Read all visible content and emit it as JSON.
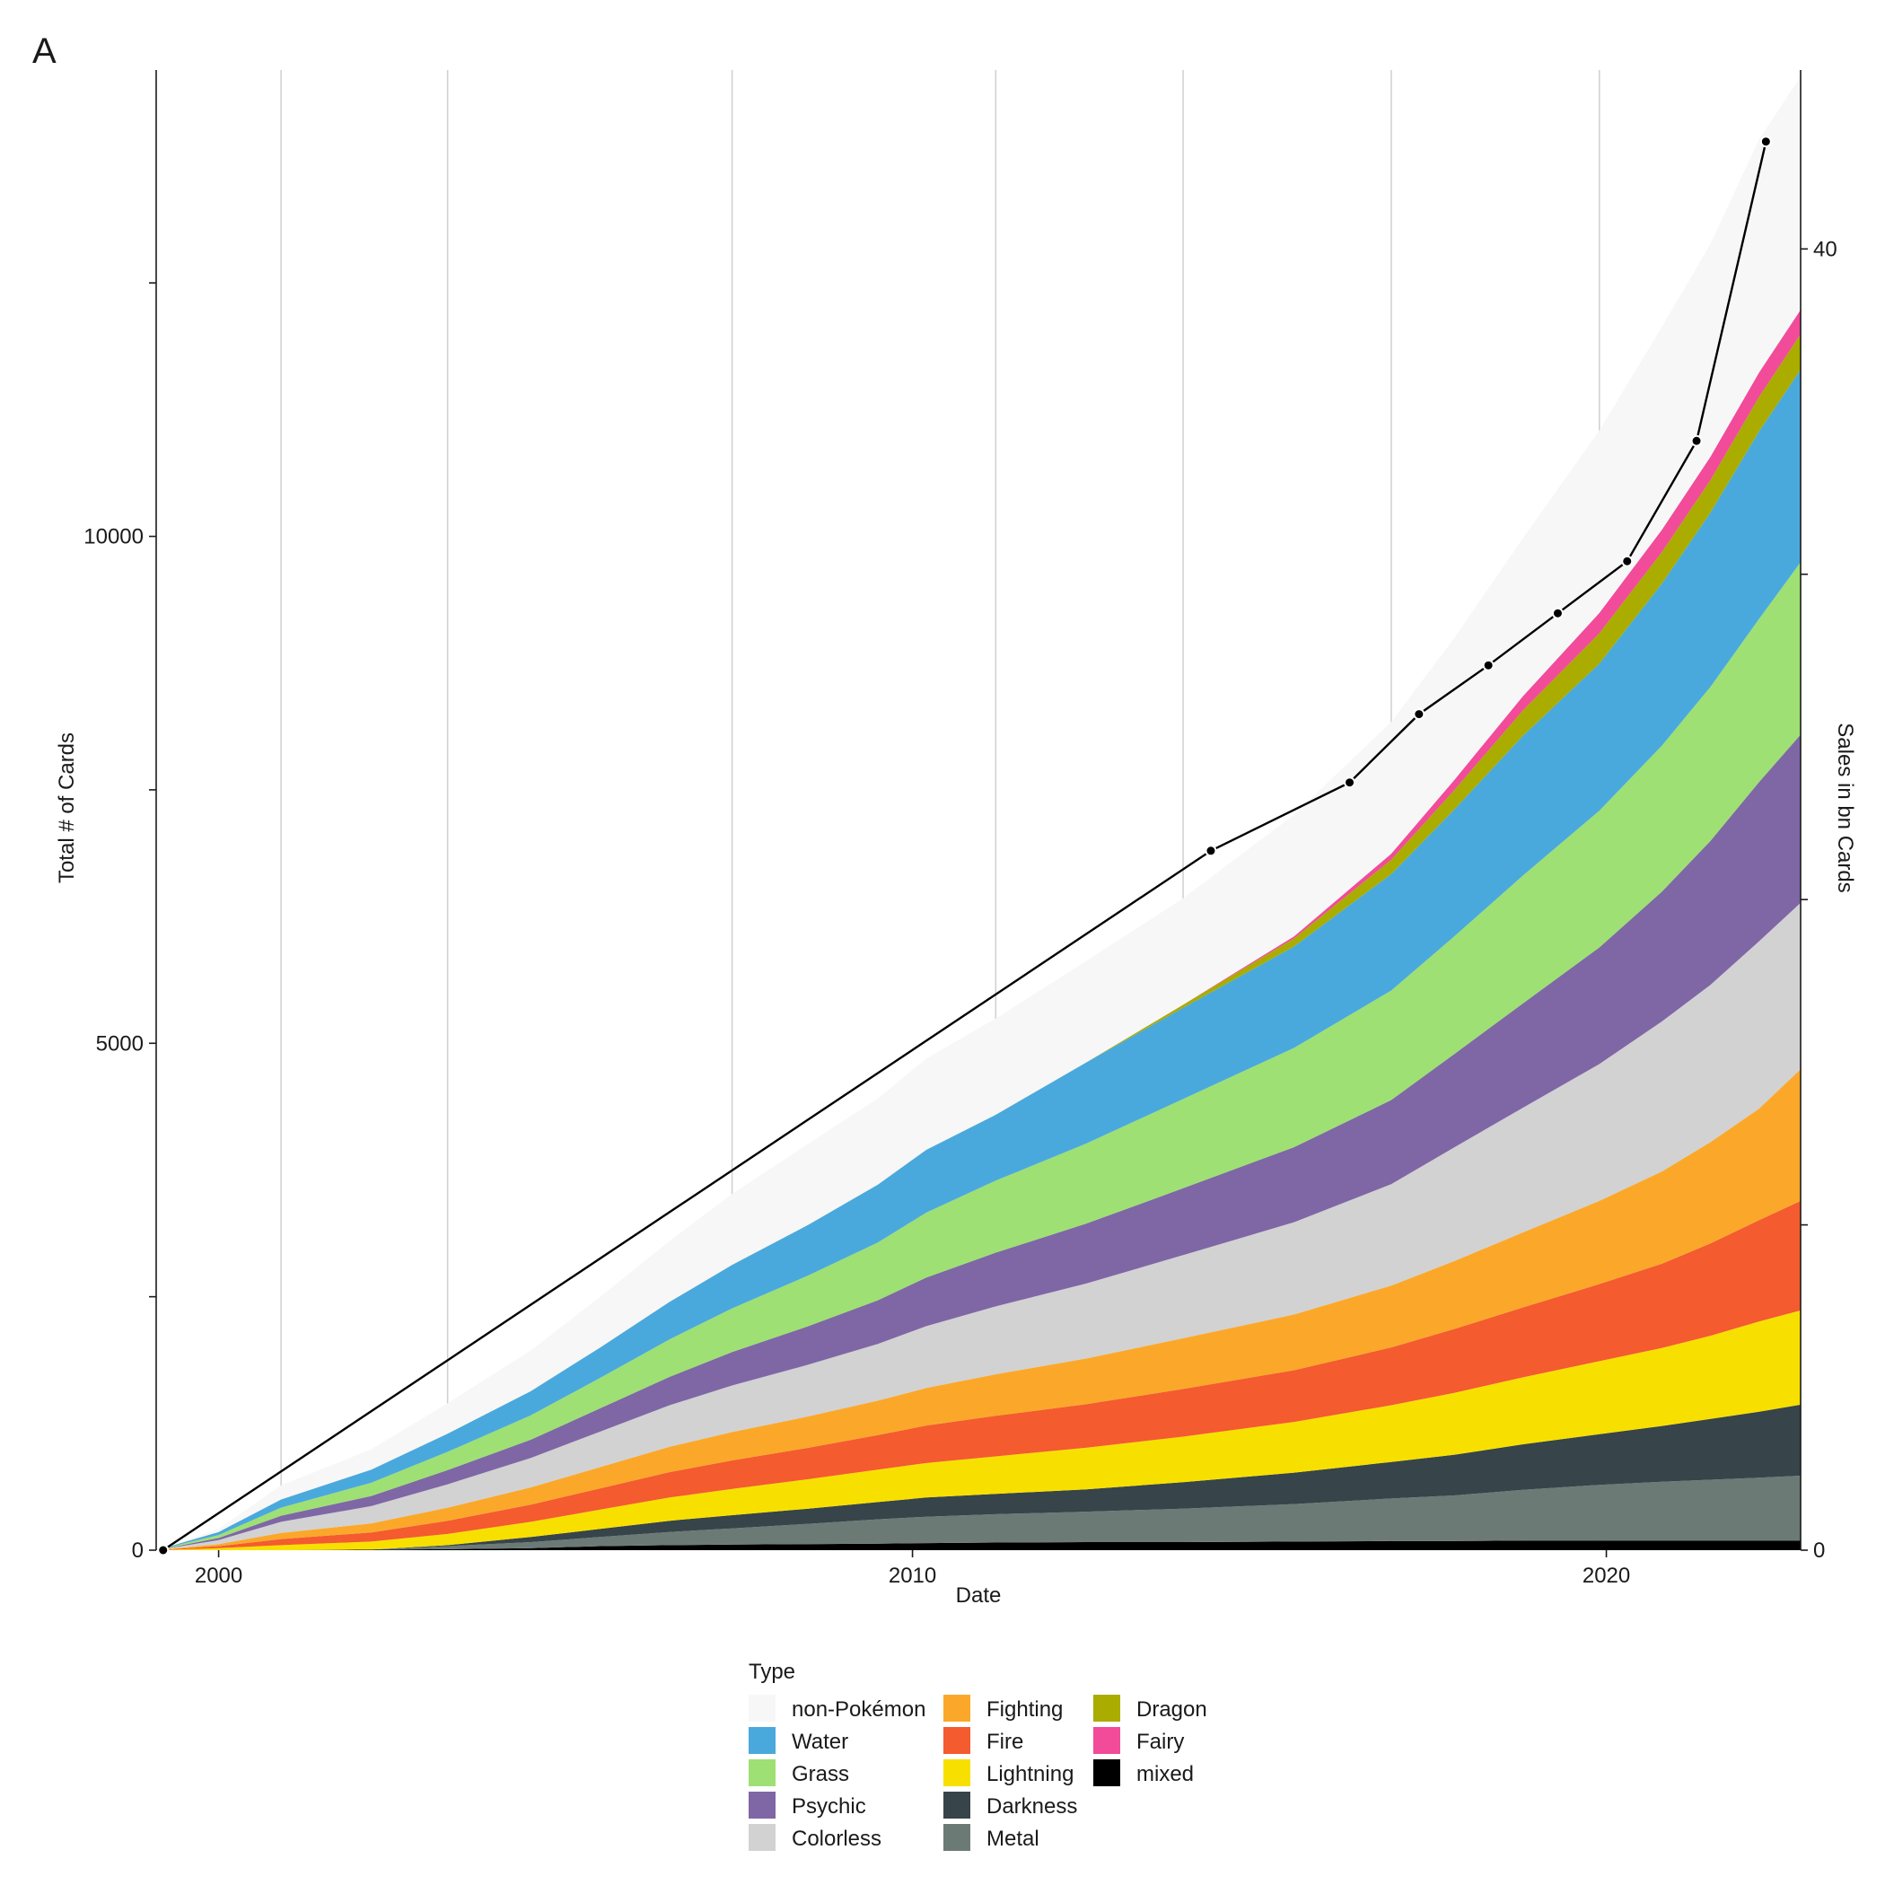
{
  "panel_label": "A",
  "chart_data": {
    "type": "area",
    "stacked": true,
    "xlabel": "Date",
    "ylabel": "Total # of Cards",
    "y2label": "Sales in bn Cards",
    "xlim": [
      1999.1,
      2022.8
    ],
    "ylim": [
      0,
      14600
    ],
    "y2lim": [
      0,
      45.5
    ],
    "x_ticks": [
      2000,
      2010,
      2020
    ],
    "y_ticks": [
      0,
      5000,
      10000
    ],
    "y_minor_ticks": [
      2500,
      7500,
      12500
    ],
    "y2_ticks": [
      0,
      40
    ],
    "y2_minor_ticks": [
      10,
      20,
      30
    ],
    "vertical_gridlines": [
      2000.9,
      2003.3,
      2007.4,
      2011.2,
      2013.9,
      2016.9,
      2019.9
    ],
    "grid": "vertical lines only",
    "legend_title": "Type",
    "legend_position": "bottom",
    "x": [
      1999.1,
      2000.0,
      2000.9,
      2002.2,
      2003.3,
      2004.5,
      2005.5,
      2006.5,
      2007.4,
      2008.5,
      2009.5,
      2010.2,
      2011.2,
      2012.5,
      2013.9,
      2015.5,
      2016.9,
      2017.8,
      2018.8,
      2019.9,
      2020.8,
      2021.5,
      2022.2,
      2022.8
    ],
    "series": [
      {
        "name": "mixed",
        "color": "#000000",
        "values": [
          0,
          0,
          0,
          5,
          10,
          20,
          40,
          50,
          55,
          60,
          65,
          70,
          75,
          80,
          80,
          85,
          90,
          90,
          95,
          95,
          95,
          95,
          95,
          95
        ]
      },
      {
        "name": "Metal",
        "color": "#6c7a76",
        "values": [
          0,
          0,
          0,
          0,
          30,
          60,
          90,
          130,
          160,
          200,
          240,
          260,
          280,
          300,
          330,
          370,
          420,
          450,
          500,
          550,
          580,
          600,
          620,
          640
        ]
      },
      {
        "name": "Darkness",
        "color": "#37444a",
        "values": [
          0,
          0,
          0,
          0,
          10,
          50,
          80,
          110,
          130,
          150,
          170,
          190,
          200,
          220,
          260,
          310,
          360,
          400,
          450,
          500,
          550,
          600,
          650,
          700
        ]
      },
      {
        "name": "Lightning",
        "color": "#f7e000",
        "values": [
          0,
          20,
          50,
          80,
          110,
          150,
          190,
          230,
          260,
          290,
          320,
          340,
          370,
          410,
          450,
          500,
          560,
          610,
          660,
          720,
          770,
          820,
          890,
          930
        ]
      },
      {
        "name": "Fire",
        "color": "#f45b2e",
        "values": [
          0,
          20,
          60,
          90,
          130,
          170,
          210,
          250,
          280,
          310,
          340,
          370,
          400,
          430,
          470,
          510,
          570,
          630,
          690,
          760,
          830,
          910,
          1000,
          1080
        ]
      },
      {
        "name": "Fighting",
        "color": "#fba82a",
        "values": [
          0,
          20,
          60,
          90,
          130,
          170,
          210,
          250,
          280,
          310,
          340,
          370,
          410,
          450,
          500,
          550,
          610,
          670,
          740,
          820,
          910,
          1000,
          1100,
          1300
        ]
      },
      {
        "name": "Colorless",
        "color": "#d2d2d2",
        "values": [
          0,
          40,
          110,
          170,
          230,
          290,
          350,
          410,
          460,
          510,
          560,
          610,
          670,
          740,
          820,
          910,
          1000,
          1120,
          1230,
          1350,
          1480,
          1550,
          1650,
          1640
        ]
      },
      {
        "name": "Psychic",
        "color": "#7f67a5",
        "values": [
          0,
          20,
          60,
          100,
          140,
          180,
          230,
          280,
          330,
          380,
          430,
          480,
          530,
          590,
          660,
          740,
          830,
          920,
          1030,
          1150,
          1280,
          1420,
          1570,
          1660
        ]
      },
      {
        "name": "Grass",
        "color": "#9ee073",
        "values": [
          0,
          30,
          80,
          130,
          180,
          240,
          300,
          370,
          430,
          500,
          570,
          640,
          710,
          790,
          880,
          980,
          1080,
          1160,
          1260,
          1350,
          1440,
          1520,
          1610,
          1700
        ]
      },
      {
        "name": "Water",
        "color": "#4aa9dc",
        "values": [
          0,
          30,
          80,
          130,
          180,
          240,
          300,
          370,
          430,
          500,
          570,
          620,
          650,
          800,
          900,
          1000,
          1150,
          1250,
          1380,
          1450,
          1600,
          1720,
          1850,
          1900
        ]
      },
      {
        "name": "Dragon",
        "color": "#aaac00",
        "values": [
          0,
          0,
          0,
          0,
          0,
          0,
          0,
          0,
          0,
          0,
          0,
          0,
          0,
          0,
          30,
          80,
          140,
          190,
          250,
          300,
          310,
          320,
          340,
          350
        ]
      },
      {
        "name": "Fairy",
        "color": "#f14b9a",
        "values": [
          0,
          0,
          0,
          0,
          0,
          0,
          0,
          0,
          0,
          0,
          0,
          0,
          0,
          0,
          0,
          20,
          60,
          100,
          140,
          200,
          220,
          230,
          240,
          240
        ]
      },
      {
        "name": "non-Pokémon",
        "color": "#f7f7f7",
        "values": [
          0,
          30,
          140,
          200,
          300,
          400,
          500,
          600,
          700,
          800,
          850,
          900,
          950,
          1000,
          1050,
          1200,
          1300,
          1400,
          1560,
          1800,
          2000,
          2100,
          2300,
          2300
        ]
      }
    ],
    "sales_line": {
      "name": "Sales in bn Cards",
      "color": "#000000",
      "x": [
        1999.2,
        2014.3,
        2016.3,
        2017.3,
        2018.3,
        2019.3,
        2020.3,
        2021.3,
        2022.3
      ],
      "values": [
        0,
        21.5,
        23.6,
        25.7,
        27.2,
        28.8,
        30.4,
        34.1,
        43.3
      ]
    },
    "legend": {
      "title": "Type",
      "columns": [
        [
          "non-Pokémon",
          "Water",
          "Grass",
          "Psychic",
          "Colorless"
        ],
        [
          "Fighting",
          "Fire",
          "Lightning",
          "Darkness",
          "Metal"
        ],
        [
          "Dragon",
          "Fairy",
          "mixed"
        ]
      ]
    }
  }
}
